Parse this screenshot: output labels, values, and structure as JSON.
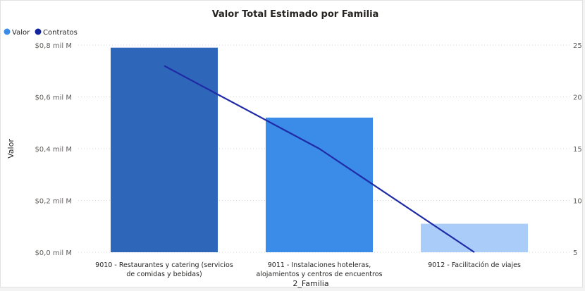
{
  "chart_data": {
    "type": "bar",
    "title": "Valor Total Estimado por Familia",
    "xlabel": "2_Familia",
    "ylabel": "Valor",
    "y2label": "",
    "legend": {
      "position": "top-left",
      "items": [
        "Valor",
        "Contratos"
      ]
    },
    "categories": [
      [
        "9010 - Restaurantes y catering (servicios",
        "de comidas y bebidas)"
      ],
      [
        "9011 - Instalaciones hoteleras,",
        "alojamientos y centros de encuentros"
      ],
      [
        "9012 - Facilitación de viajes"
      ]
    ],
    "series": [
      {
        "name": "Valor",
        "type": "bar",
        "axis": "left",
        "values": [
          0.79,
          0.52,
          0.11
        ]
      },
      {
        "name": "Contratos",
        "type": "line",
        "axis": "right",
        "values": [
          23,
          15,
          5
        ]
      }
    ],
    "ylim": [
      0,
      0.8
    ],
    "yticks": [
      "$0,0 mil M",
      "$0,2 mil M",
      "$0,4 mil M",
      "$0,6 mil M",
      "$0,8 mil M"
    ],
    "y2lim": [
      5,
      25
    ],
    "y2ticks": [
      "5",
      "10",
      "15",
      "20",
      "25"
    ],
    "grid": true
  },
  "colors": {
    "legend_valor": "#3b8ce8",
    "legend_contratos": "#12239e",
    "bars": [
      "#2e67b9",
      "#3b8ce8",
      "#a9cdf8"
    ],
    "line": "#1f2aa6",
    "grid": "#d6d6d6",
    "text": "#252423"
  }
}
